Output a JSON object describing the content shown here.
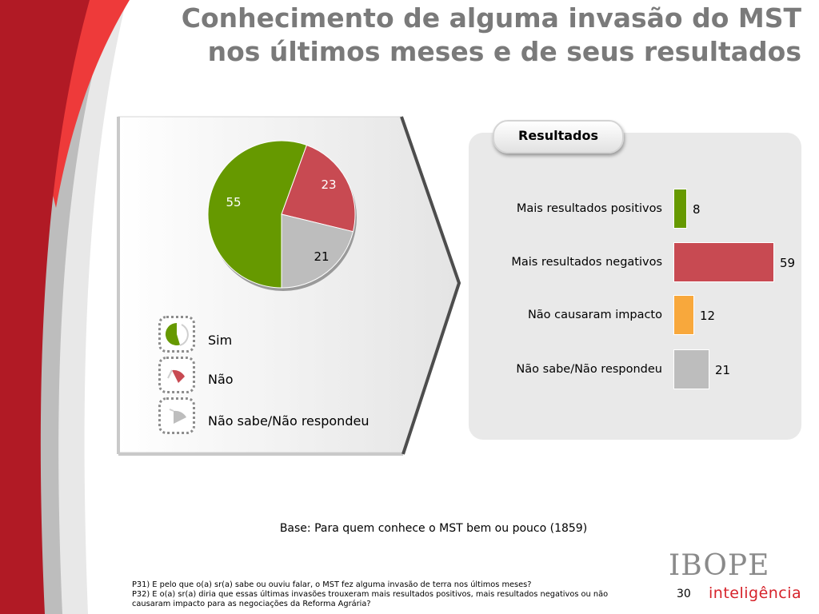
{
  "title": {
    "line1": "Conhecimento de alguma invasão do MST",
    "line2": "nos últimos meses e de seus resultados"
  },
  "colors": {
    "green": "#669900",
    "red": "#c84a52",
    "orange": "#f8a83c",
    "gray": "#bdbdbd",
    "title_gray": "#7a7a7a",
    "brand_red": "#d6222a"
  },
  "chart_data": [
    {
      "type": "pie",
      "slices": [
        {
          "label": "Sim",
          "value": 55,
          "color": "#669900"
        },
        {
          "label": "Não",
          "value": 23,
          "color": "#c84a52"
        },
        {
          "label": "Não sabe/Não respondeu",
          "value": 21,
          "color": "#bdbdbd"
        }
      ],
      "data_labels": [
        "55",
        "23",
        "21"
      ],
      "legend": [
        "Sim",
        "Não",
        "Não sabe/Não respondeu"
      ],
      "legend_position": "bottom-left"
    },
    {
      "type": "bar",
      "orientation": "horizontal",
      "title": "Resultados",
      "categories": [
        "Mais resultados positivos",
        "Mais resultados negativos",
        "Não causaram impacto",
        "Não sabe/Não respondeu"
      ],
      "values": [
        8,
        59,
        12,
        21
      ],
      "colors": [
        "#669900",
        "#c84a52",
        "#f8a83c",
        "#bdbdbd"
      ],
      "data_labels": [
        "8",
        "59",
        "12",
        "21"
      ]
    }
  ],
  "base_note": "Base: Para quem conhece o MST bem ou pouco (1859)",
  "footnote": {
    "line1": "P31) E pelo que o(a) sr(a) sabe ou ouviu falar, o MST fez alguma invasão de terra nos últimos meses?",
    "line2": "P32) E o(a) sr(a) diria que essas últimas invasões trouxeram mais resultados positivos, mais resultados negativos ou não",
    "line3": "causaram impacto para as negociações da Reforma Agrária?"
  },
  "page_number": "30",
  "logo": {
    "brand": "IBOPE",
    "sub": "inteligência"
  }
}
